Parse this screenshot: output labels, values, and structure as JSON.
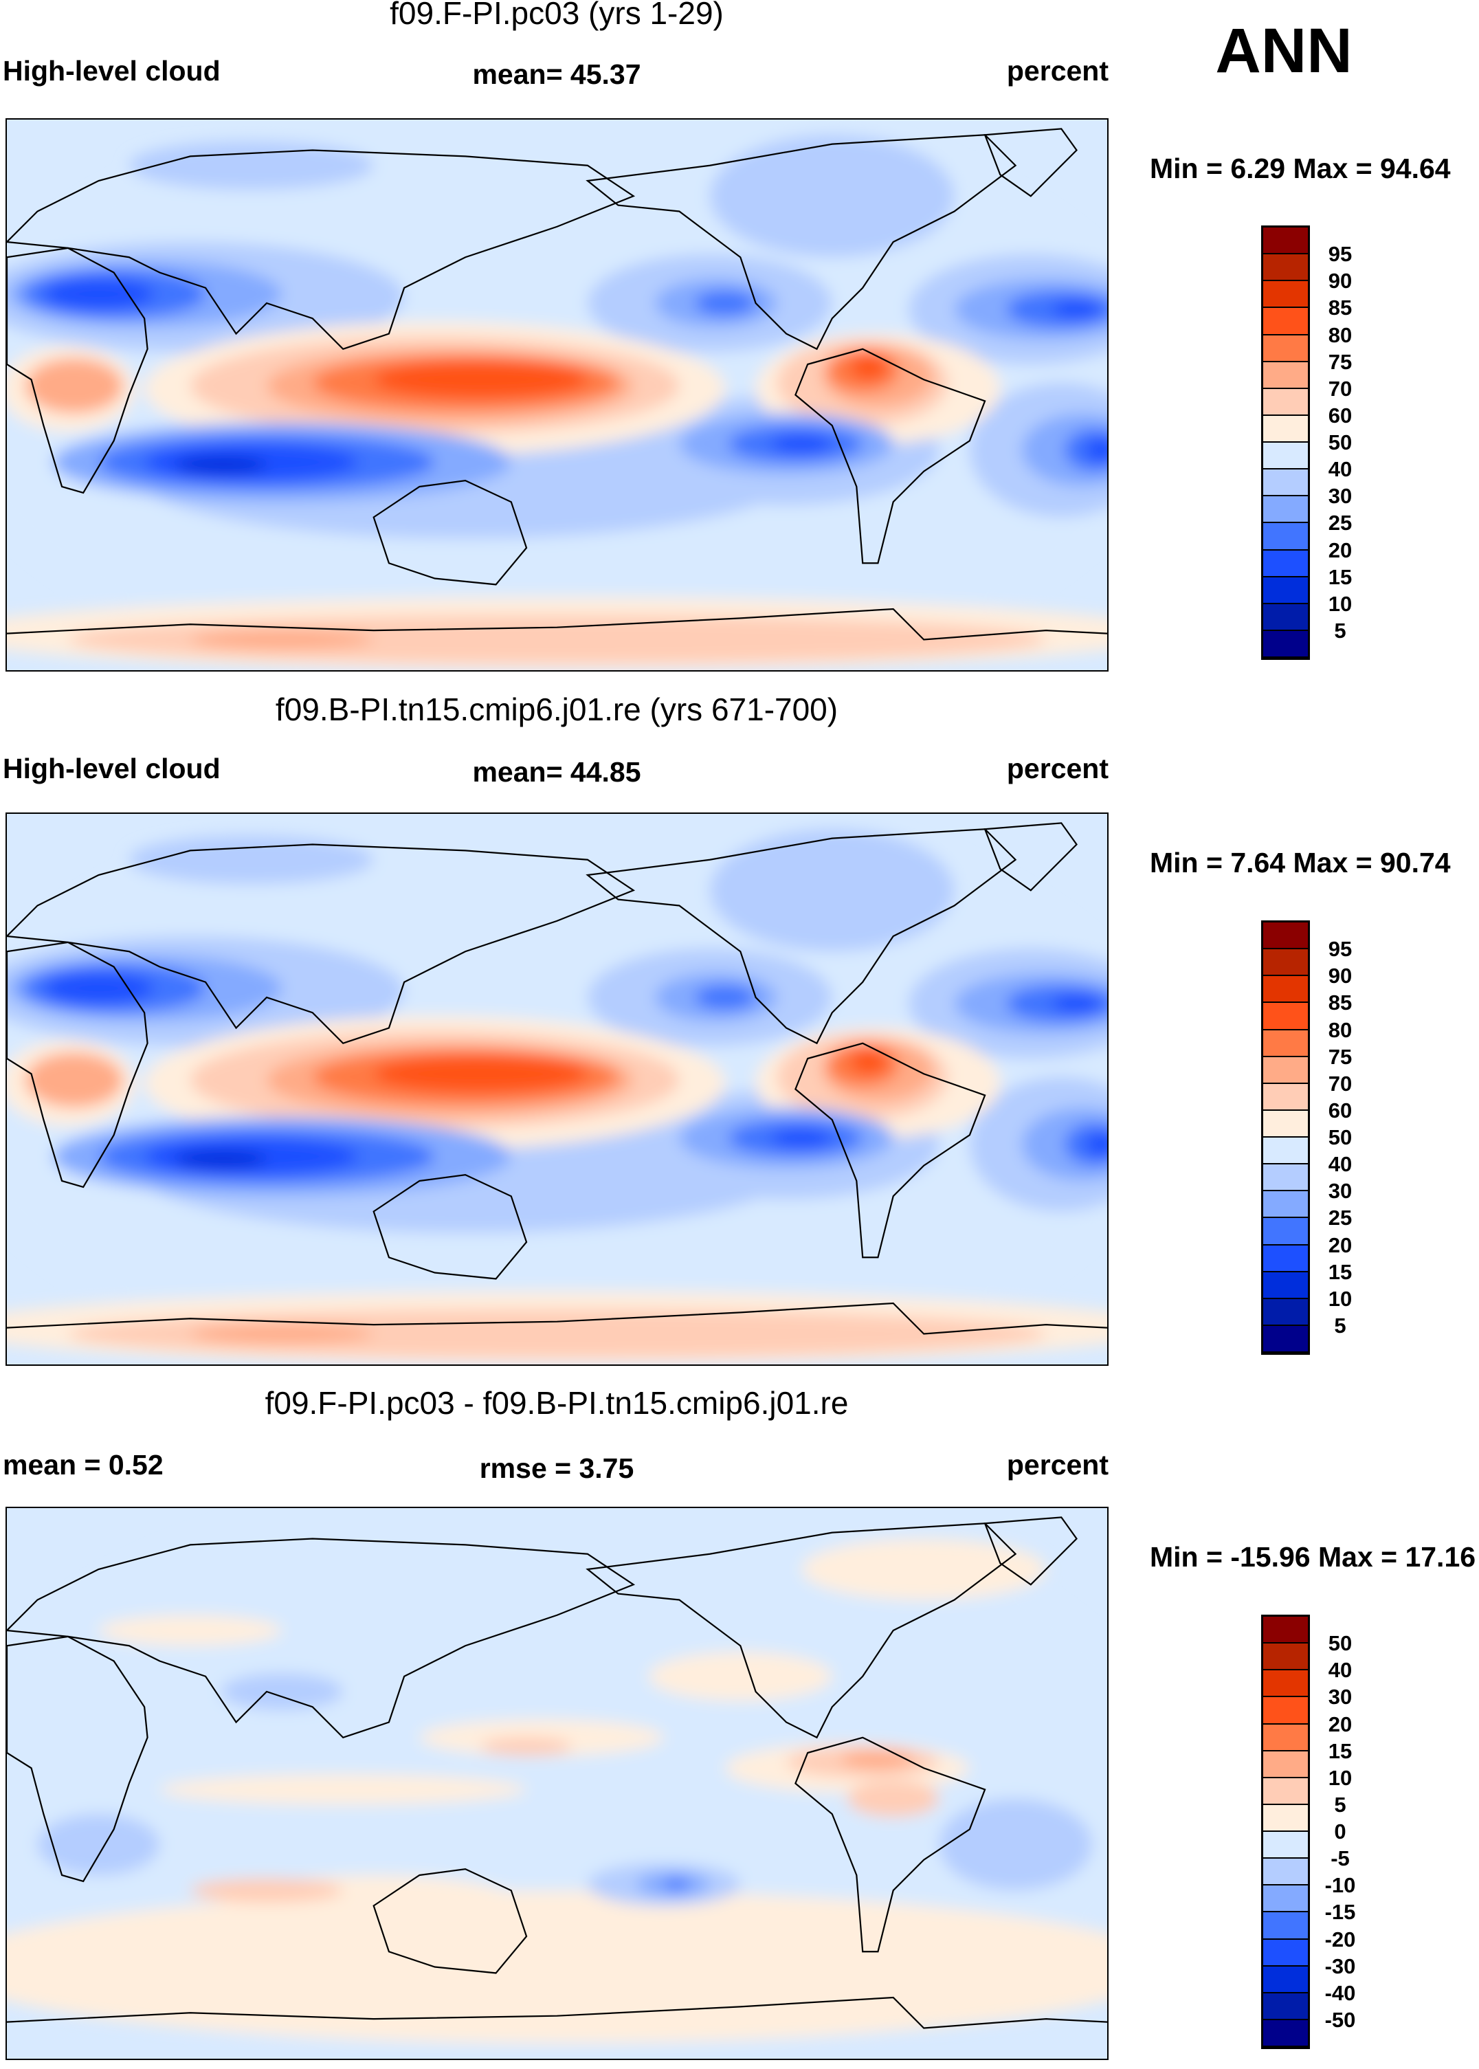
{
  "header": {
    "season": "ANN"
  },
  "colors": [
    "#8b0000",
    "#b72400",
    "#e33500",
    "#ff5219",
    "#ff7a45",
    "#ffab87",
    "#ffcdb6",
    "#ffeedd",
    "#d8eaff",
    "#b4cdff",
    "#84aaff",
    "#4175ff",
    "#1d50ff",
    "#002edc",
    "#001caa",
    "#00008b"
  ],
  "chart_data": [
    {
      "type": "heatmap",
      "title": "f09.F-PI.pc03 (yrs 1-29)",
      "left_label": "High-level cloud",
      "center_label": "mean=  45.37",
      "units": "percent",
      "minmax": "Min =   6.29 Max =  94.64",
      "min": 6.29,
      "max": 94.64,
      "mean": 45.37,
      "levels": [
        "95",
        "90",
        "85",
        "80",
        "75",
        "70",
        "60",
        "50",
        "40",
        "30",
        "25",
        "20",
        "15",
        "10",
        "5"
      ]
    },
    {
      "type": "heatmap",
      "title": "f09.B-PI.tn15.cmip6.j01.re (yrs 671-700)",
      "left_label": "High-level cloud",
      "center_label": "mean=  44.85",
      "units": "percent",
      "minmax": "Min =   7.64 Max =  90.74",
      "min": 7.64,
      "max": 90.74,
      "mean": 44.85,
      "levels": [
        "95",
        "90",
        "85",
        "80",
        "75",
        "70",
        "60",
        "50",
        "40",
        "30",
        "25",
        "20",
        "15",
        "10",
        "5"
      ]
    },
    {
      "type": "heatmap",
      "title": "f09.F-PI.pc03 - f09.B-PI.tn15.cmip6.j01.re",
      "left_label": "mean =   0.52",
      "center_label": "rmse =   3.75",
      "units": "percent",
      "minmax": "Min = -15.96 Max =  17.16",
      "min": -15.96,
      "max": 17.16,
      "mean": 0.52,
      "rmse": 3.75,
      "levels": [
        "50",
        "40",
        "30",
        "20",
        "15",
        "10",
        "5",
        "0",
        "-5",
        "-10",
        "-15",
        "-20",
        "-30",
        "-40",
        "-50"
      ]
    }
  ]
}
